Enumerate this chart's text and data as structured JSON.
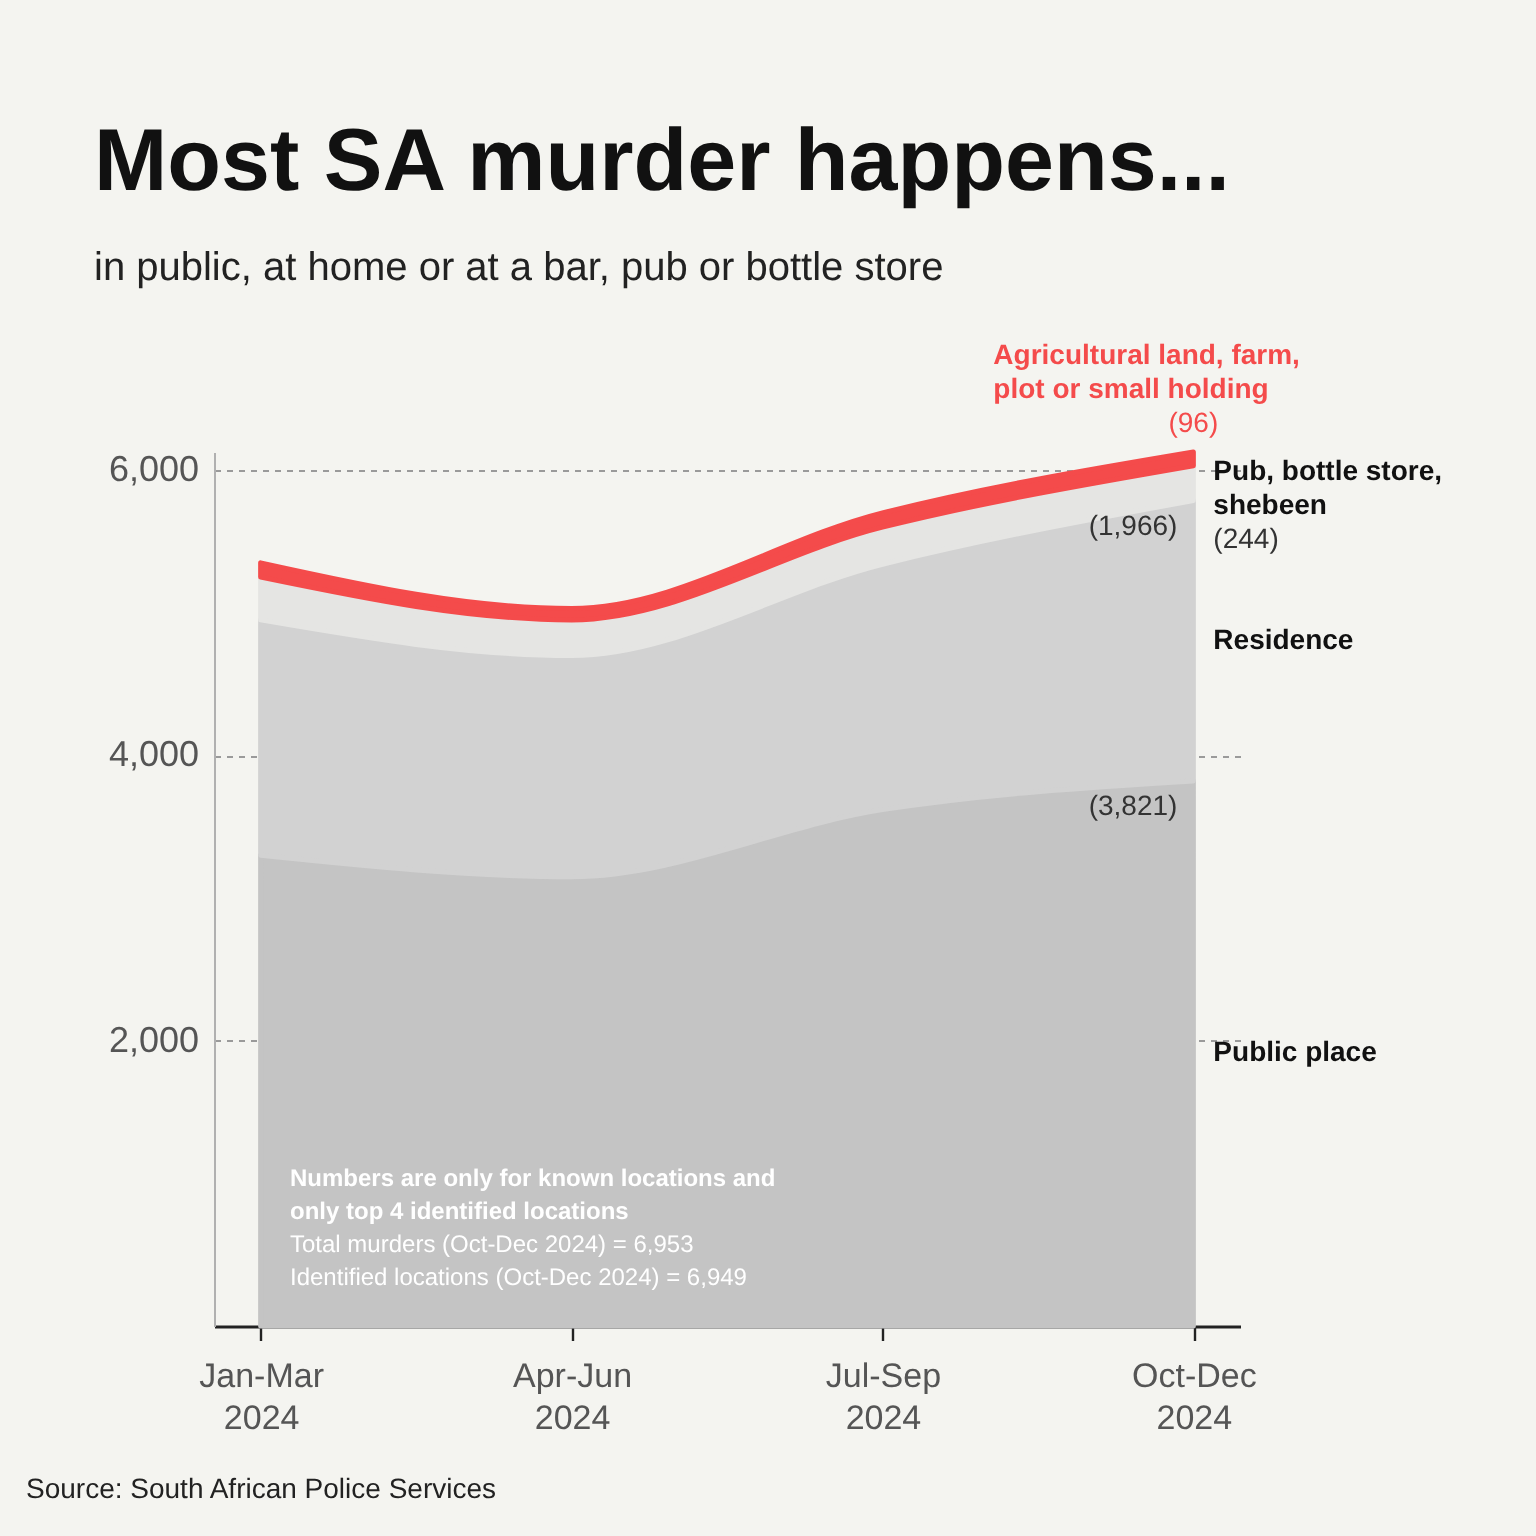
{
  "chart_data": {
    "type": "area",
    "title": "Most SA murder happens...",
    "subtitle": "in public, at home or at a bar, pub or bottle store",
    "categories": [
      "Jan-Mar 2024",
      "Apr-Jun 2024",
      "Jul-Sep 2024",
      "Oct-Dec 2024"
    ],
    "series": [
      {
        "name": "Public place",
        "color": "#c4c4c4",
        "values": [
          3300,
          3150,
          3620,
          3821
        ],
        "value_labels": [
          null,
          null,
          null,
          "(3,821)"
        ]
      },
      {
        "name": "Residence",
        "color": "#d2d2d2",
        "values": [
          1650,
          1550,
          1720,
          1966
        ],
        "value_labels": [
          null,
          null,
          null,
          "(1,966)"
        ]
      },
      {
        "name": "Pub, bottle store, shebeen",
        "color": "#e5e5e3",
        "values": [
          300,
          250,
          260,
          244
        ],
        "value_labels": [
          null,
          null,
          null,
          "(244)"
        ]
      },
      {
        "name": "Agricultural land, farm, plot or small holding",
        "color": "#f44b4b",
        "values": [
          100,
          80,
          100,
          96
        ],
        "value_labels": [
          null,
          null,
          null,
          "(96)"
        ]
      }
    ],
    "stacked": true,
    "ylim": [
      0,
      6127
    ],
    "yticks": [
      {
        "value": 2000,
        "label": "2,000"
      },
      {
        "value": 4000,
        "label": "4,000"
      },
      {
        "value": 6000,
        "label": "6,000"
      }
    ],
    "grid": "y",
    "annotations": [
      "Numbers are only for known locations and only top 4 identified locations",
      "Total murders (Oct-Dec 2024) = 6,953",
      "Identified locations (Oct-Dec 2024) = 6,949",
      "Source: South African Police Services"
    ]
  }
}
